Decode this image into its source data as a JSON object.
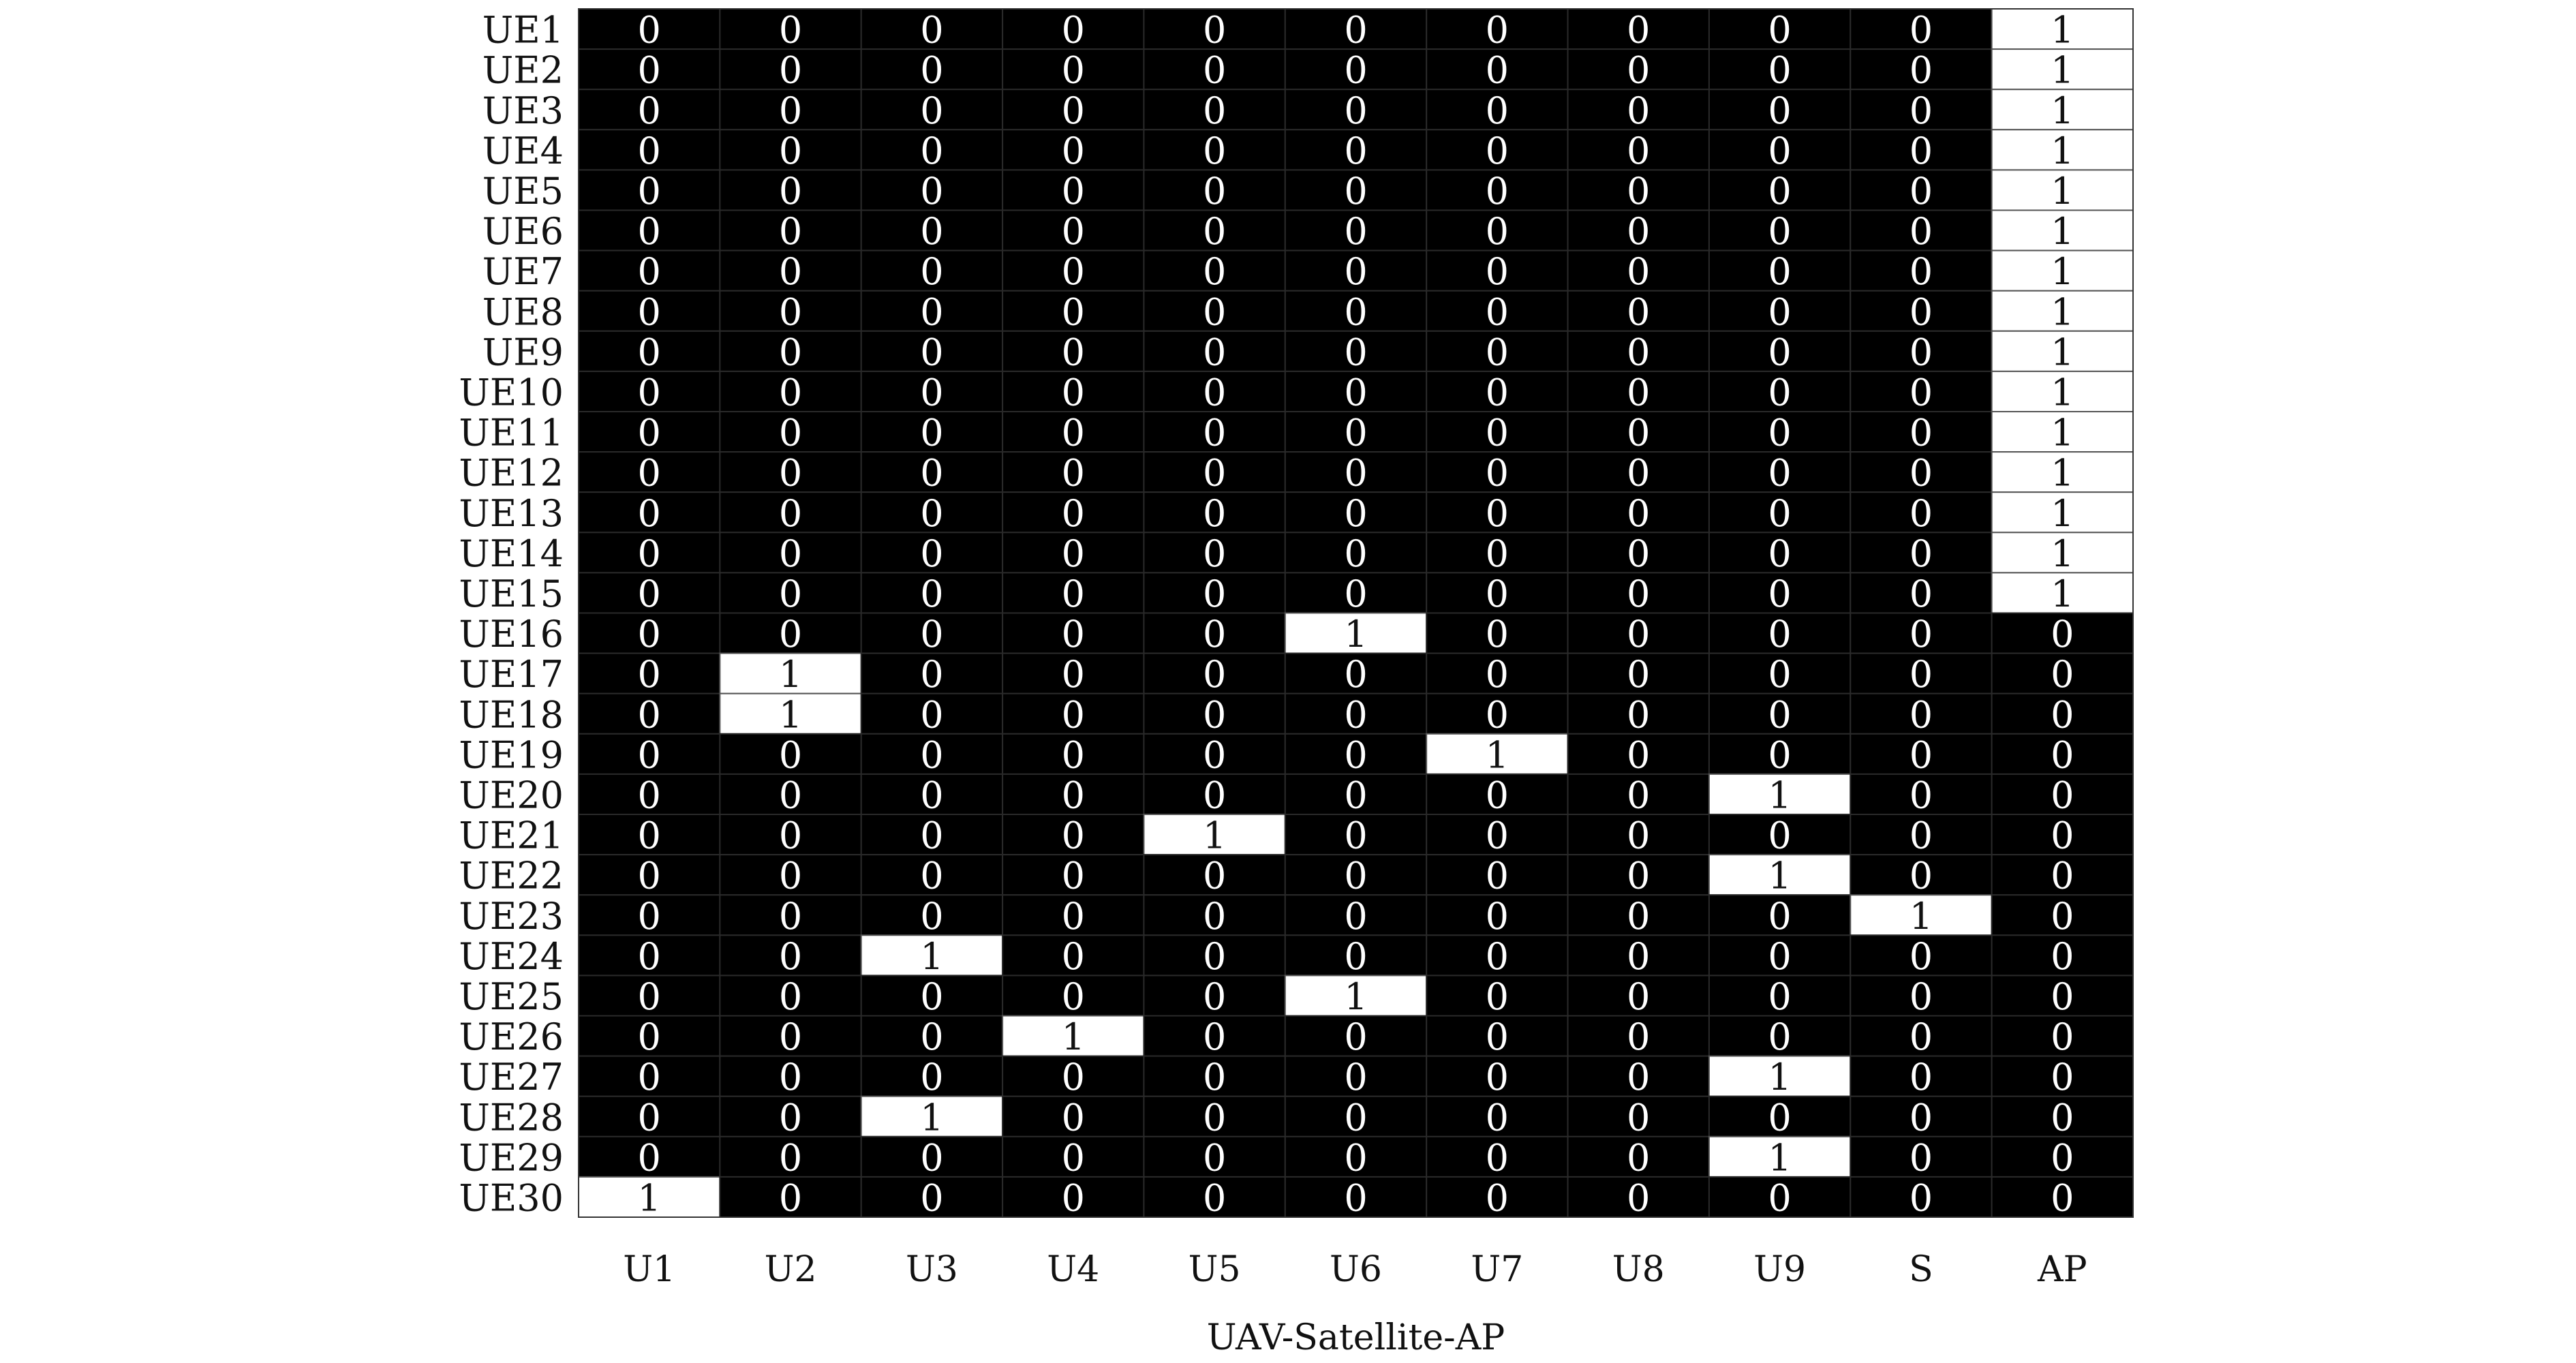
{
  "chart_data": {
    "type": "heatmap",
    "title": "",
    "xlabel": "UAV-Satellite-AP",
    "ylabel": "",
    "x_categories": [
      "U1",
      "U2",
      "U3",
      "U4",
      "U5",
      "U6",
      "U7",
      "U8",
      "U9",
      "S",
      "AP"
    ],
    "y_categories": [
      "UE1",
      "UE2",
      "UE3",
      "UE4",
      "UE5",
      "UE6",
      "UE7",
      "UE8",
      "UE9",
      "UE10",
      "UE11",
      "UE12",
      "UE13",
      "UE14",
      "UE15",
      "UE16",
      "UE17",
      "UE18",
      "UE19",
      "UE20",
      "UE21",
      "UE22",
      "UE23",
      "UE24",
      "UE25",
      "UE26",
      "UE27",
      "UE28",
      "UE29",
      "UE30"
    ],
    "values": [
      [
        0,
        0,
        0,
        0,
        0,
        0,
        0,
        0,
        0,
        0,
        1
      ],
      [
        0,
        0,
        0,
        0,
        0,
        0,
        0,
        0,
        0,
        0,
        1
      ],
      [
        0,
        0,
        0,
        0,
        0,
        0,
        0,
        0,
        0,
        0,
        1
      ],
      [
        0,
        0,
        0,
        0,
        0,
        0,
        0,
        0,
        0,
        0,
        1
      ],
      [
        0,
        0,
        0,
        0,
        0,
        0,
        0,
        0,
        0,
        0,
        1
      ],
      [
        0,
        0,
        0,
        0,
        0,
        0,
        0,
        0,
        0,
        0,
        1
      ],
      [
        0,
        0,
        0,
        0,
        0,
        0,
        0,
        0,
        0,
        0,
        1
      ],
      [
        0,
        0,
        0,
        0,
        0,
        0,
        0,
        0,
        0,
        0,
        1
      ],
      [
        0,
        0,
        0,
        0,
        0,
        0,
        0,
        0,
        0,
        0,
        1
      ],
      [
        0,
        0,
        0,
        0,
        0,
        0,
        0,
        0,
        0,
        0,
        1
      ],
      [
        0,
        0,
        0,
        0,
        0,
        0,
        0,
        0,
        0,
        0,
        1
      ],
      [
        0,
        0,
        0,
        0,
        0,
        0,
        0,
        0,
        0,
        0,
        1
      ],
      [
        0,
        0,
        0,
        0,
        0,
        0,
        0,
        0,
        0,
        0,
        1
      ],
      [
        0,
        0,
        0,
        0,
        0,
        0,
        0,
        0,
        0,
        0,
        1
      ],
      [
        0,
        0,
        0,
        0,
        0,
        0,
        0,
        0,
        0,
        0,
        1
      ],
      [
        0,
        0,
        0,
        0,
        0,
        1,
        0,
        0,
        0,
        0,
        0
      ],
      [
        0,
        1,
        0,
        0,
        0,
        0,
        0,
        0,
        0,
        0,
        0
      ],
      [
        0,
        1,
        0,
        0,
        0,
        0,
        0,
        0,
        0,
        0,
        0
      ],
      [
        0,
        0,
        0,
        0,
        0,
        0,
        1,
        0,
        0,
        0,
        0
      ],
      [
        0,
        0,
        0,
        0,
        0,
        0,
        0,
        0,
        1,
        0,
        0
      ],
      [
        0,
        0,
        0,
        0,
        1,
        0,
        0,
        0,
        0,
        0,
        0
      ],
      [
        0,
        0,
        0,
        0,
        0,
        0,
        0,
        0,
        1,
        0,
        0
      ],
      [
        0,
        0,
        0,
        0,
        0,
        0,
        0,
        0,
        0,
        1,
        0
      ],
      [
        0,
        0,
        1,
        0,
        0,
        0,
        0,
        0,
        0,
        0,
        0
      ],
      [
        0,
        0,
        0,
        0,
        0,
        1,
        0,
        0,
        0,
        0,
        0
      ],
      [
        0,
        0,
        0,
        1,
        0,
        0,
        0,
        0,
        0,
        0,
        0
      ],
      [
        0,
        0,
        0,
        0,
        0,
        0,
        0,
        0,
        1,
        0,
        0
      ],
      [
        0,
        0,
        1,
        0,
        0,
        0,
        0,
        0,
        0,
        0,
        0
      ],
      [
        0,
        0,
        0,
        0,
        0,
        0,
        0,
        0,
        1,
        0,
        0
      ],
      [
        1,
        0,
        0,
        0,
        0,
        0,
        0,
        0,
        0,
        0,
        0
      ]
    ],
    "colormap": {
      "0": "#000000",
      "1": "#ffffff"
    },
    "grid": true,
    "legend": "none"
  }
}
